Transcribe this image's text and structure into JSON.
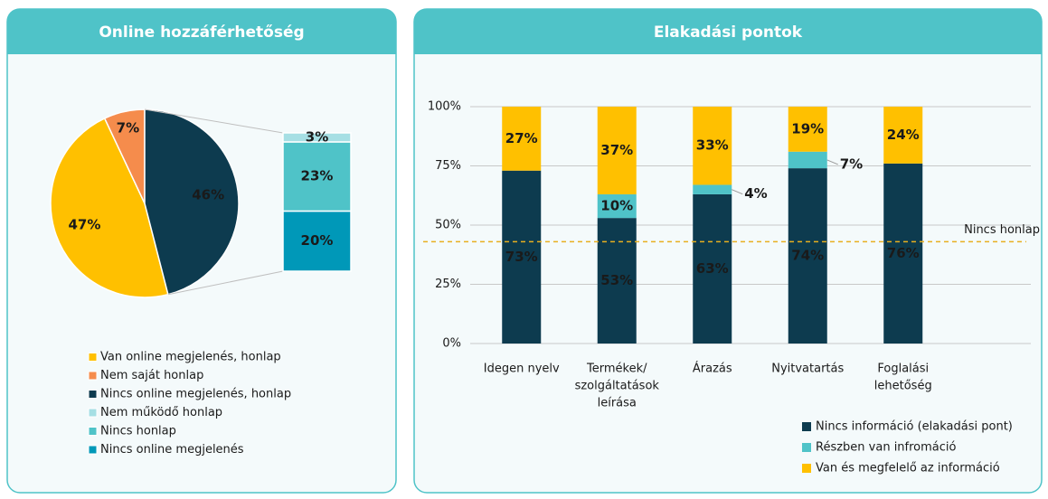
{
  "chart_data": [
    {
      "type": "pie_of_bar",
      "title": "Online hozzáférhetőség",
      "categories": [
        "Van online megjelenés, honlap",
        "Nem saját honlap",
        "Nincs online megjelenés, honlap"
      ],
      "values": [
        47,
        7,
        46
      ],
      "value_labels": [
        "47%",
        "7%",
        "46%"
      ],
      "colors": [
        "#ffc000",
        "#f58c4c",
        "#0d3b4f"
      ],
      "label_colors": [
        "#ffffff",
        "#ffffff",
        "#ffffff"
      ],
      "breakdown": {
        "categories": [
          "Nem működő honlap",
          "Nincs honlap",
          "Nincs online megjelenés"
        ],
        "values": [
          3,
          23,
          20
        ],
        "value_labels": [
          "3%",
          "23%",
          "20%"
        ],
        "colors": [
          "#a6dfe4",
          "#4fc3c8",
          "#0098b8"
        ],
        "label_colors": [
          "#0d3b4f",
          "#0d3b4f",
          "#ffffff"
        ]
      }
    },
    {
      "type": "stacked_bar",
      "title": "Elakadási pontok",
      "categories": [
        [
          "Idegen nyelv"
        ],
        [
          "Termékek/",
          "szolgáltatások",
          "leírása"
        ],
        [
          "Árazás"
        ],
        [
          "Nyitvatartás"
        ],
        [
          "Foglalási",
          "lehetőség"
        ]
      ],
      "series": [
        {
          "name": "Nincs információ (elakadási pont)",
          "color": "#0d3b4f",
          "label_color": "#ffffff",
          "values": [
            73,
            53,
            63,
            74,
            76
          ],
          "value_labels": [
            "73%",
            "53%",
            "63%",
            "74%",
            "76%"
          ]
        },
        {
          "name": "Részben van infromáció",
          "color": "#4fc3c8",
          "label_color": "#0d3b4f",
          "values": [
            0,
            10,
            4,
            7,
            0
          ],
          "value_labels": [
            null,
            "10%",
            "4%",
            "7%",
            null
          ]
        },
        {
          "name": "Van és megfelelő az információ",
          "color": "#ffc000",
          "label_color": "#0d3b4f",
          "values": [
            27,
            37,
            33,
            19,
            24
          ],
          "value_labels": [
            "27%",
            "37%",
            "33%",
            "19%",
            "24%"
          ]
        }
      ],
      "ylim": [
        0,
        100
      ],
      "yticks": [
        {
          "value": 0,
          "label": "0%"
        },
        {
          "value": 25,
          "label": "25%"
        },
        {
          "value": 50,
          "label": "50%"
        },
        {
          "value": 75,
          "label": "75%"
        },
        {
          "value": 100,
          "label": "100%"
        }
      ],
      "grid": true,
      "reference_line": {
        "value": 43,
        "label": "Nincs honlap",
        "color": "#e8b020"
      }
    }
  ]
}
